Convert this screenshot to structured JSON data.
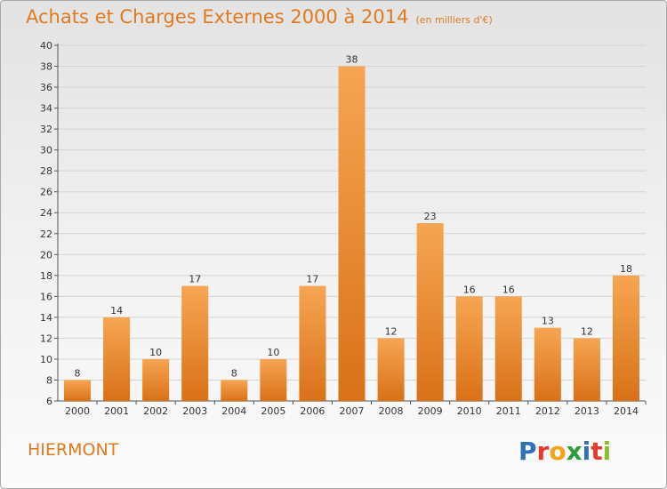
{
  "title": "Achats et Charges Externes 2000 à 2014",
  "subtitle": "(en milliers d'€)",
  "commune": "HIERMONT",
  "brand": "Proxiti",
  "colors": {
    "title": "#e07a20",
    "bar_light": "#f6a553",
    "bar_dark": "#d97118",
    "grid": "#d4d4d4",
    "axis": "#555555"
  },
  "chart_data": {
    "type": "bar",
    "title": "Achats et Charges Externes 2000 à 2014",
    "subtitle": "(en milliers d'€)",
    "categories": [
      "2000",
      "2001",
      "2002",
      "2003",
      "2004",
      "2005",
      "2006",
      "2007",
      "2008",
      "2009",
      "2010",
      "2011",
      "2012",
      "2013",
      "2014"
    ],
    "values": [
      8,
      14,
      10,
      17,
      8,
      10,
      17,
      38,
      12,
      23,
      16,
      16,
      13,
      12,
      18
    ],
    "ylim": [
      6,
      40
    ],
    "yticks": [
      6,
      8,
      10,
      12,
      14,
      16,
      18,
      20,
      22,
      24,
      26,
      28,
      30,
      32,
      34,
      36,
      38,
      40
    ],
    "grid": true,
    "xlabel": "",
    "ylabel": ""
  }
}
